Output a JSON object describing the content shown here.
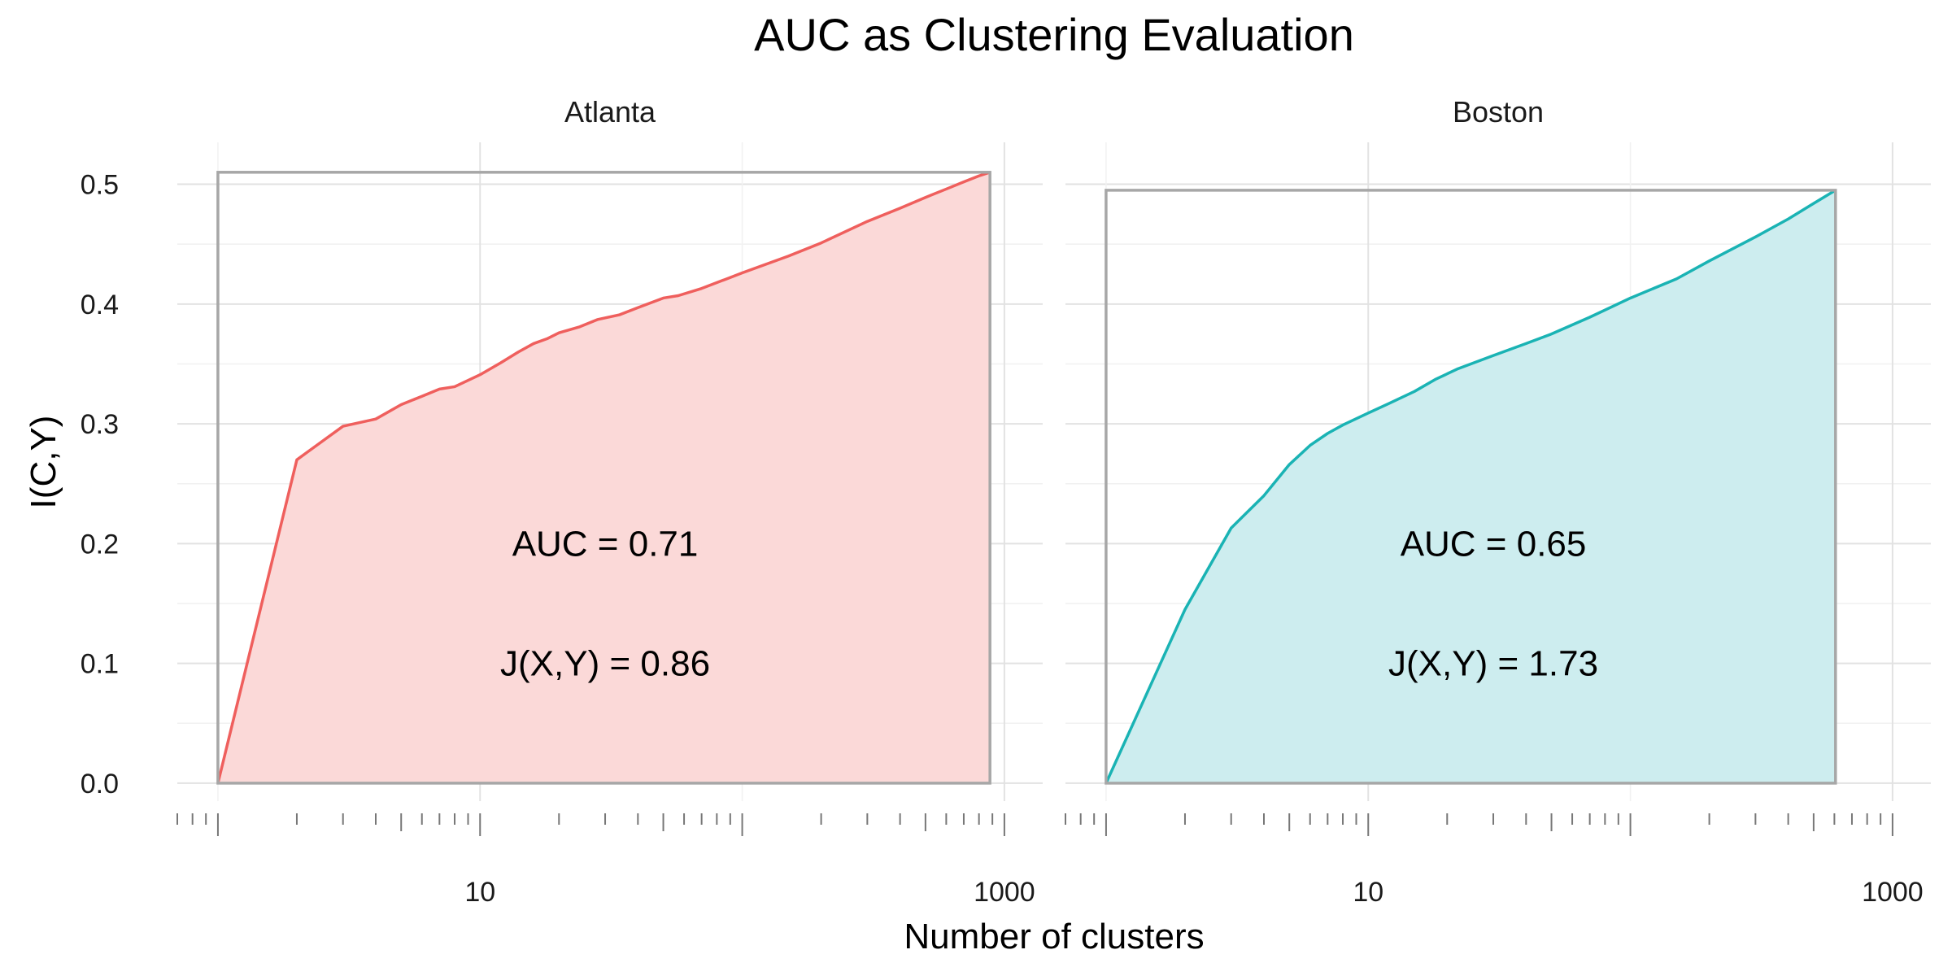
{
  "figure": {
    "title": "AUC as Clustering Evaluation",
    "xlabel": "Number of clusters",
    "ylabel": "I(C,Y)"
  },
  "chart_data": [
    {
      "type": "area",
      "facet": "Atlanta",
      "x_scale": "log10",
      "xlim": [
        0.7,
        1400
      ],
      "ylim": [
        -0.015,
        0.535
      ],
      "x_ticks": [
        10,
        1000
      ],
      "x_tick_labels": [
        "10",
        "1000"
      ],
      "y_ticks": [
        0,
        0.1,
        0.2,
        0.3,
        0.4,
        0.5
      ],
      "y_tick_labels": [
        "0.0",
        "0.1",
        "0.2",
        "0.3",
        "0.4",
        "0.5"
      ],
      "color": "#ef5f5d",
      "fill": "#fbd9d8",
      "max_value": 0.51,
      "x_max": 881,
      "points": [
        [
          1,
          0.0
        ],
        [
          2,
          0.27
        ],
        [
          3,
          0.298
        ],
        [
          4,
          0.304
        ],
        [
          5,
          0.316
        ],
        [
          6,
          0.323
        ],
        [
          7,
          0.329
        ],
        [
          8,
          0.331
        ],
        [
          10,
          0.341
        ],
        [
          12,
          0.351
        ],
        [
          14,
          0.36
        ],
        [
          16,
          0.367
        ],
        [
          18,
          0.371
        ],
        [
          20,
          0.376
        ],
        [
          24,
          0.381
        ],
        [
          28,
          0.387
        ],
        [
          34,
          0.391
        ],
        [
          40,
          0.397
        ],
        [
          50,
          0.405
        ],
        [
          57,
          0.407
        ],
        [
          70,
          0.413
        ],
        [
          100,
          0.426
        ],
        [
          150,
          0.44
        ],
        [
          200,
          0.451
        ],
        [
          300,
          0.469
        ],
        [
          400,
          0.48
        ],
        [
          500,
          0.489
        ],
        [
          600,
          0.496
        ],
        [
          700,
          0.502
        ],
        [
          800,
          0.507
        ],
        [
          881,
          0.51
        ]
      ],
      "annotations": [
        {
          "label": "AUC =  0.71",
          "x": 30,
          "y": 0.2
        },
        {
          "label": "J(X,Y) =  0.86",
          "x": 30,
          "y": 0.1
        }
      ]
    },
    {
      "type": "area",
      "facet": "Boston",
      "x_scale": "log10",
      "xlim": [
        0.7,
        1400
      ],
      "ylim": [
        -0.015,
        0.535
      ],
      "x_ticks": [
        10,
        1000
      ],
      "x_tick_labels": [
        "10",
        "1000"
      ],
      "y_ticks": [
        0,
        0.1,
        0.2,
        0.3,
        0.4,
        0.5
      ],
      "color": "#1ab3b4",
      "fill": "#cdedef",
      "max_value": 0.495,
      "x_max": 606,
      "points": [
        [
          1,
          0.0
        ],
        [
          2,
          0.145
        ],
        [
          3,
          0.213
        ],
        [
          4,
          0.24
        ],
        [
          5,
          0.266
        ],
        [
          6,
          0.282
        ],
        [
          7,
          0.292
        ],
        [
          8,
          0.299
        ],
        [
          10,
          0.309
        ],
        [
          12,
          0.317
        ],
        [
          15,
          0.327
        ],
        [
          18,
          0.337
        ],
        [
          22,
          0.346
        ],
        [
          30,
          0.357
        ],
        [
          40,
          0.367
        ],
        [
          50,
          0.375
        ],
        [
          70,
          0.389
        ],
        [
          100,
          0.405
        ],
        [
          150,
          0.421
        ],
        [
          200,
          0.436
        ],
        [
          300,
          0.456
        ],
        [
          400,
          0.471
        ],
        [
          500,
          0.484
        ],
        [
          606,
          0.495
        ]
      ],
      "annotations": [
        {
          "label": "AUC =  0.65",
          "x": 30,
          "y": 0.2
        },
        {
          "label": "J(X,Y) =  1.73",
          "x": 30,
          "y": 0.1
        }
      ]
    }
  ]
}
